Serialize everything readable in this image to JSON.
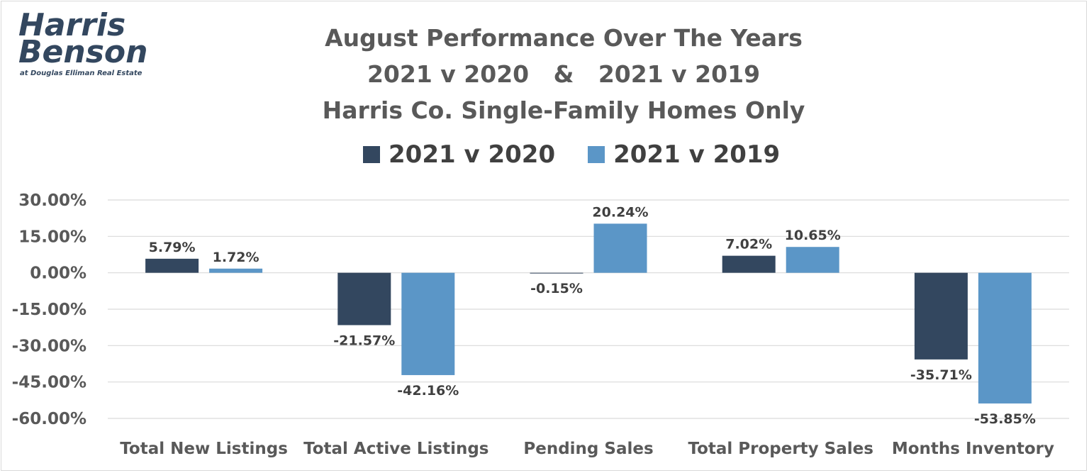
{
  "logo": {
    "line1": "Harris",
    "line2": "Benson",
    "tagline": "at Douglas Elliman Real Estate"
  },
  "chart_data": {
    "type": "bar",
    "title": [
      "August Performance Over The Years",
      "2021 v 2020   &   2021 v 2019",
      "Harris Co. Single-Family Homes Only"
    ],
    "categories": [
      "Total New Listings",
      "Total Active Listings",
      "Pending Sales",
      "Total Property Sales",
      "Months Inventory"
    ],
    "series": [
      {
        "name": "2021 v 2020",
        "color": "#33475f",
        "values": [
          5.79,
          -21.57,
          -0.15,
          7.02,
          -35.71
        ],
        "labels": [
          "5.79%",
          "-21.57%",
          "-0.15%",
          "7.02%",
          "-35.71%"
        ]
      },
      {
        "name": "2021 v 2019",
        "color": "#5b96c7",
        "values": [
          1.72,
          -42.16,
          20.24,
          10.65,
          -53.85
        ],
        "labels": [
          "1.72%",
          "-42.16%",
          "20.24%",
          "10.65%",
          "-53.85%"
        ]
      }
    ],
    "ylim": [
      -60,
      30
    ],
    "yticks": [
      30,
      15,
      0,
      -15,
      -30,
      -45,
      -60
    ],
    "ytick_labels": [
      "30.00%",
      "15.00%",
      "0.00%",
      "-15.00%",
      "-30.00%",
      "-45.00%",
      "-60.00%"
    ],
    "grid": true,
    "legend_position": "top"
  }
}
